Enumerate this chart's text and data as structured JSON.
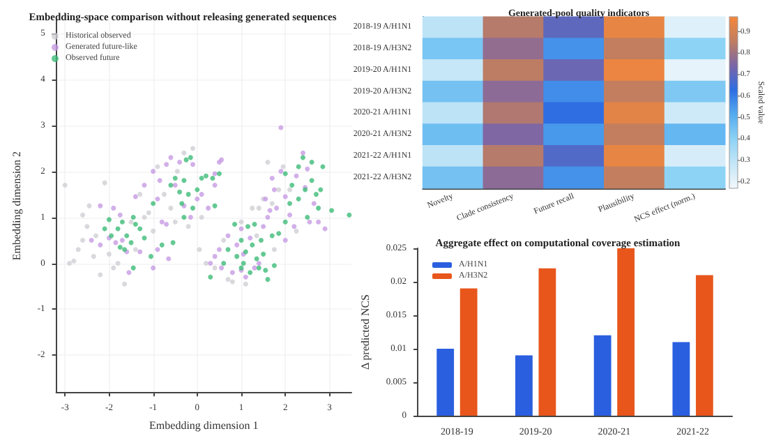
{
  "chart_data": [
    {
      "type": "scatter",
      "title": "Embedding-space comparison without releasing generated sequences",
      "xlabel": "Embedding dimension 1",
      "ylabel": "Embedding dimension 2",
      "xlim": [
        -3.2,
        3.5
      ],
      "ylim": [
        -2.8,
        5.3
      ],
      "xticks": [
        -3,
        -2,
        -1,
        0,
        1,
        2,
        3
      ],
      "yticks": [
        -2,
        -1,
        0,
        1,
        2,
        3,
        4,
        5
      ],
      "grid": true,
      "legend": "top left",
      "marker": "circle",
      "series": [
        {
          "name": "Historical observed",
          "color": "#cfcfd4",
          "x": [
            -3.0,
            -2.9,
            -2.8,
            -2.7,
            -2.6,
            -2.5,
            -2.45,
            -2.35,
            -2.2,
            -2.1,
            -2.0,
            -1.9,
            -1.8,
            -1.65,
            -1.5,
            -1.3,
            -1.2,
            -1.1,
            -1.0,
            -0.9,
            -0.75,
            -0.6,
            -0.45,
            -0.3,
            -0.2,
            -0.1,
            0.05,
            0.1,
            -0.5,
            -2.6,
            0.2,
            0.4,
            0.6,
            0.8,
            1.0,
            1.1,
            1.25,
            1.35,
            1.5,
            1.6,
            1.7,
            1.75,
            1.85,
            1.95,
            2.1,
            2.25,
            1.4,
            0.7,
            -1.4,
            -2.3
          ],
          "values": [
            1.7,
            0.0,
            0.05,
            0.3,
            0.5,
            0.8,
            1.25,
            0.15,
            -0.25,
            1.75,
            0.2,
            -0.1,
            0.0,
            -0.45,
            0.9,
            1.5,
            1.0,
            1.1,
            0.7,
            2.1,
            1.5,
            1.2,
            2.0,
            2.4,
            0.8,
            2.5,
            0.3,
            1.0,
            0.9,
            1.05,
            0.0,
            -0.1,
            0.5,
            -0.4,
            0.9,
            -0.45,
            1.2,
            0.6,
            1.4,
            2.2,
            1.3,
            0.3,
            1.6,
            2.1,
            1.6,
            0.7,
            1.2,
            -0.35,
            0.3,
            0.6
          ]
        },
        {
          "name": "Generated future-like",
          "color": "#c79be3",
          "x": [
            -2.4,
            -2.2,
            -2.0,
            -1.85,
            -1.7,
            -1.75,
            -1.9,
            -1.6,
            -1.55,
            -1.3,
            -1.0,
            -0.9,
            -0.7,
            -0.65,
            -1.2,
            -1.0,
            -0.9,
            -0.85,
            -0.7,
            -0.6,
            -0.5,
            -0.4,
            -0.3,
            -0.15,
            0.0,
            0.1,
            0.25,
            0.4,
            0.5,
            0.55,
            -2.2,
            0.4,
            -0.1,
            -0.8,
            -1.4,
            0.3,
            0.4,
            0.5,
            0.55,
            0.7,
            0.8,
            0.9,
            1.0,
            1.05,
            1.1,
            1.2,
            1.3,
            1.4,
            1.5,
            1.6,
            1.55,
            1.65,
            1.75,
            1.8,
            1.9,
            1.9,
            2.0,
            2.1,
            2.2,
            2.25,
            2.4,
            2.45,
            2.5,
            2.55,
            2.65,
            2.75,
            2.9,
            1.7,
            1.0,
            2.0
          ],
          "values": [
            0.5,
            0.4,
            0.55,
            0.45,
            0.5,
            1.05,
            1.2,
            0.25,
            -0.2,
            0.25,
            -0.1,
            0.3,
            0.85,
            0.1,
            1.7,
            2.0,
            1.4,
            1.8,
            2.15,
            2.3,
            1.7,
            2.2,
            1.25,
            1.0,
            1.4,
            1.5,
            1.2,
            1.7,
            2.2,
            2.25,
            1.25,
            1.95,
            2.15,
            0.9,
            1.45,
            0.0,
            0.15,
            0.3,
            -0.1,
            0.6,
            -0.2,
            0.4,
            0.75,
            0.2,
            -0.3,
            0.55,
            -0.1,
            0.0,
            0.8,
            1.0,
            1.4,
            1.15,
            1.6,
            1.2,
            2.0,
            2.95,
            1.45,
            1.05,
            0.8,
            1.9,
            2.4,
            1.65,
            2.05,
            0.9,
            1.3,
            0.9,
            0.75,
            1.85,
            -0.15,
            0.5
          ]
        },
        {
          "name": "Observed future",
          "color": "#3dbb78",
          "x": [
            -2.0,
            -2.1,
            -1.95,
            -1.8,
            -1.7,
            -1.6,
            -1.75,
            -1.65,
            -1.5,
            -1.4,
            -1.3,
            -1.45,
            -1.2,
            -1.05,
            -1.45,
            -0.8,
            -1.0,
            -0.55,
            -0.5,
            -0.3,
            -0.25,
            -0.15,
            -0.4,
            -0.35,
            -0.2,
            -0.1,
            0.0,
            0.1,
            0.2,
            0.35,
            0.5,
            0.4,
            -0.6,
            -0.3,
            0.3,
            0.6,
            0.7,
            0.9,
            1.0,
            1.05,
            1.1,
            1.15,
            1.3,
            1.25,
            1.35,
            1.45,
            1.5,
            1.55,
            1.6,
            1.4,
            1.0,
            1.75,
            1.7,
            1.85,
            2.0,
            2.1,
            2.0,
            2.15,
            2.3,
            2.4,
            2.45,
            2.6,
            2.7,
            2.75,
            2.8,
            2.85,
            2.6,
            2.3,
            2.5,
            3.05,
            3.45,
            0.85,
            1.2
          ],
          "values": [
            0.95,
            0.75,
            0.6,
            0.75,
            0.9,
            0.6,
            0.35,
            0.3,
            0.45,
            0.85,
            0.75,
            1.0,
            0.55,
            0.15,
            -0.1,
            0.4,
            1.3,
            0.45,
            1.85,
            1.8,
            2.25,
            2.3,
            1.55,
            1.3,
            1.5,
            1.2,
            1.6,
            1.85,
            1.9,
            1.85,
            1.95,
            1.25,
            1.7,
            1.0,
            -0.3,
            0.0,
            0.3,
            0.15,
            0.5,
            0.0,
            0.25,
            0.8,
            0.85,
            0.4,
            0.1,
            0.5,
            0.2,
            -0.15,
            -0.35,
            -0.1,
            -0.1,
            -0.05,
            0.6,
            0.65,
            0.9,
            1.3,
            1.95,
            1.7,
            2.1,
            2.3,
            1.6,
            1.8,
            1.5,
            1.2,
            1.6,
            2.1,
            2.2,
            1.4,
            1.0,
            1.15,
            1.05,
            0.85,
            -0.2
          ]
        }
      ]
    },
    {
      "type": "heatmap",
      "title": "Generated-pool quality indicators",
      "clabel": "Scaled value",
      "categories": [
        "Novelty",
        "Clade consistency",
        "Future recall",
        "Plausibility",
        "NCS effect (norm.)"
      ],
      "y_categories": [
        "2018-19 A/H1N1",
        "2018-19 A/H3N2",
        "2019-20 A/H1N1",
        "2019-20 A/H3N2",
        "2020-21 A/H1N1",
        "2020-21 A/H3N2",
        "2021-22 A/H1N1",
        "2021-22 A/H3N2"
      ],
      "clim": [
        0.17,
        0.97
      ],
      "cticks": [
        0.2,
        0.3,
        0.4,
        0.5,
        0.6,
        0.7,
        0.8,
        0.9
      ],
      "cells": [
        [
          0.3,
          0.84,
          0.7,
          0.94,
          0.22
        ],
        [
          0.44,
          0.78,
          0.56,
          0.86,
          0.4
        ],
        [
          0.28,
          0.85,
          0.72,
          0.95,
          0.2
        ],
        [
          0.45,
          0.77,
          0.57,
          0.86,
          0.43
        ],
        [
          0.3,
          0.83,
          0.63,
          0.93,
          0.26
        ],
        [
          0.46,
          0.75,
          0.55,
          0.86,
          0.48
        ],
        [
          0.3,
          0.84,
          0.68,
          0.94,
          0.24
        ],
        [
          0.45,
          0.77,
          0.56,
          0.86,
          0.4
        ]
      ]
    },
    {
      "type": "bar",
      "title": "Aggregate effect on computational coverage estimation",
      "ylabel": "Δ predicted NCS",
      "categories": [
        "2018-19",
        "2019-20",
        "2020-21",
        "2021-22"
      ],
      "ylim": [
        0,
        0.025
      ],
      "yticks": [
        0,
        0.005,
        0.01,
        0.015,
        0.02,
        0.025
      ],
      "legend": "top left",
      "grid": false,
      "series": [
        {
          "name": "A/H1N1",
          "color": "#2a5fdf",
          "values": [
            0.01,
            0.009,
            0.012,
            0.011
          ]
        },
        {
          "name": "A/H3N2",
          "color": "#e8561c",
          "values": [
            0.019,
            0.022,
            0.025,
            0.021
          ]
        }
      ]
    }
  ]
}
